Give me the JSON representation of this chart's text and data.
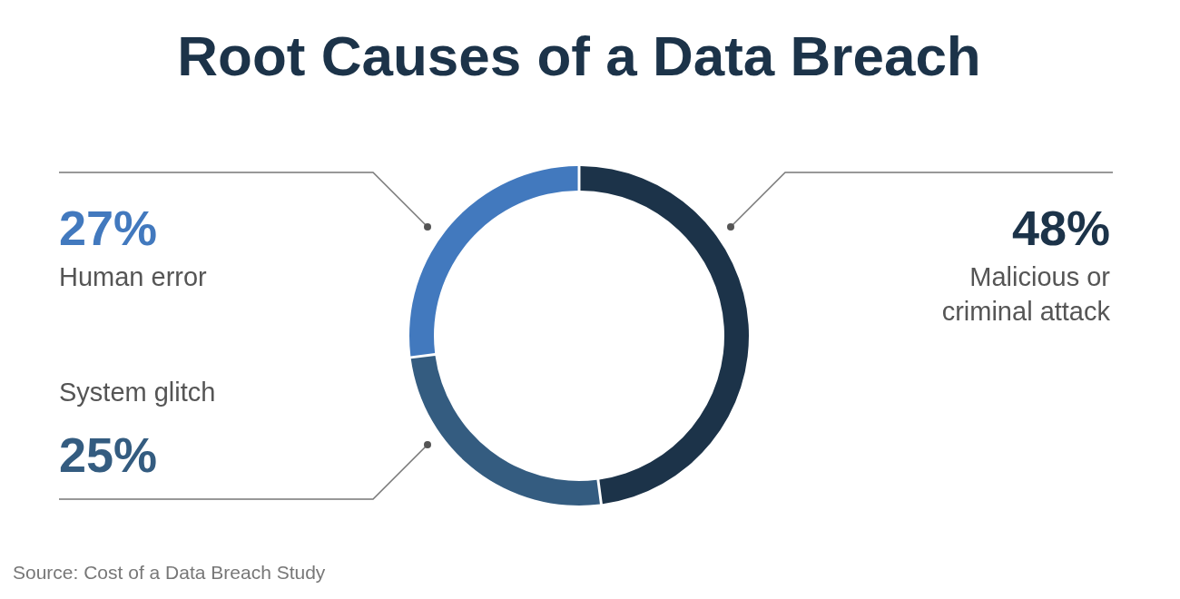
{
  "chart_data": {
    "type": "donut",
    "title": "Root Causes of a Data Breach",
    "categories": [
      "Malicious or criminal attack",
      "System glitch",
      "Human error"
    ],
    "values": [
      48,
      25,
      27
    ],
    "colors": [
      "#1c3349",
      "#345c80",
      "#4279be"
    ],
    "value_labels": [
      "48%",
      "25%",
      "27%"
    ],
    "annotations": [
      "Source: Cost of a Data Breach Study"
    ]
  }
}
